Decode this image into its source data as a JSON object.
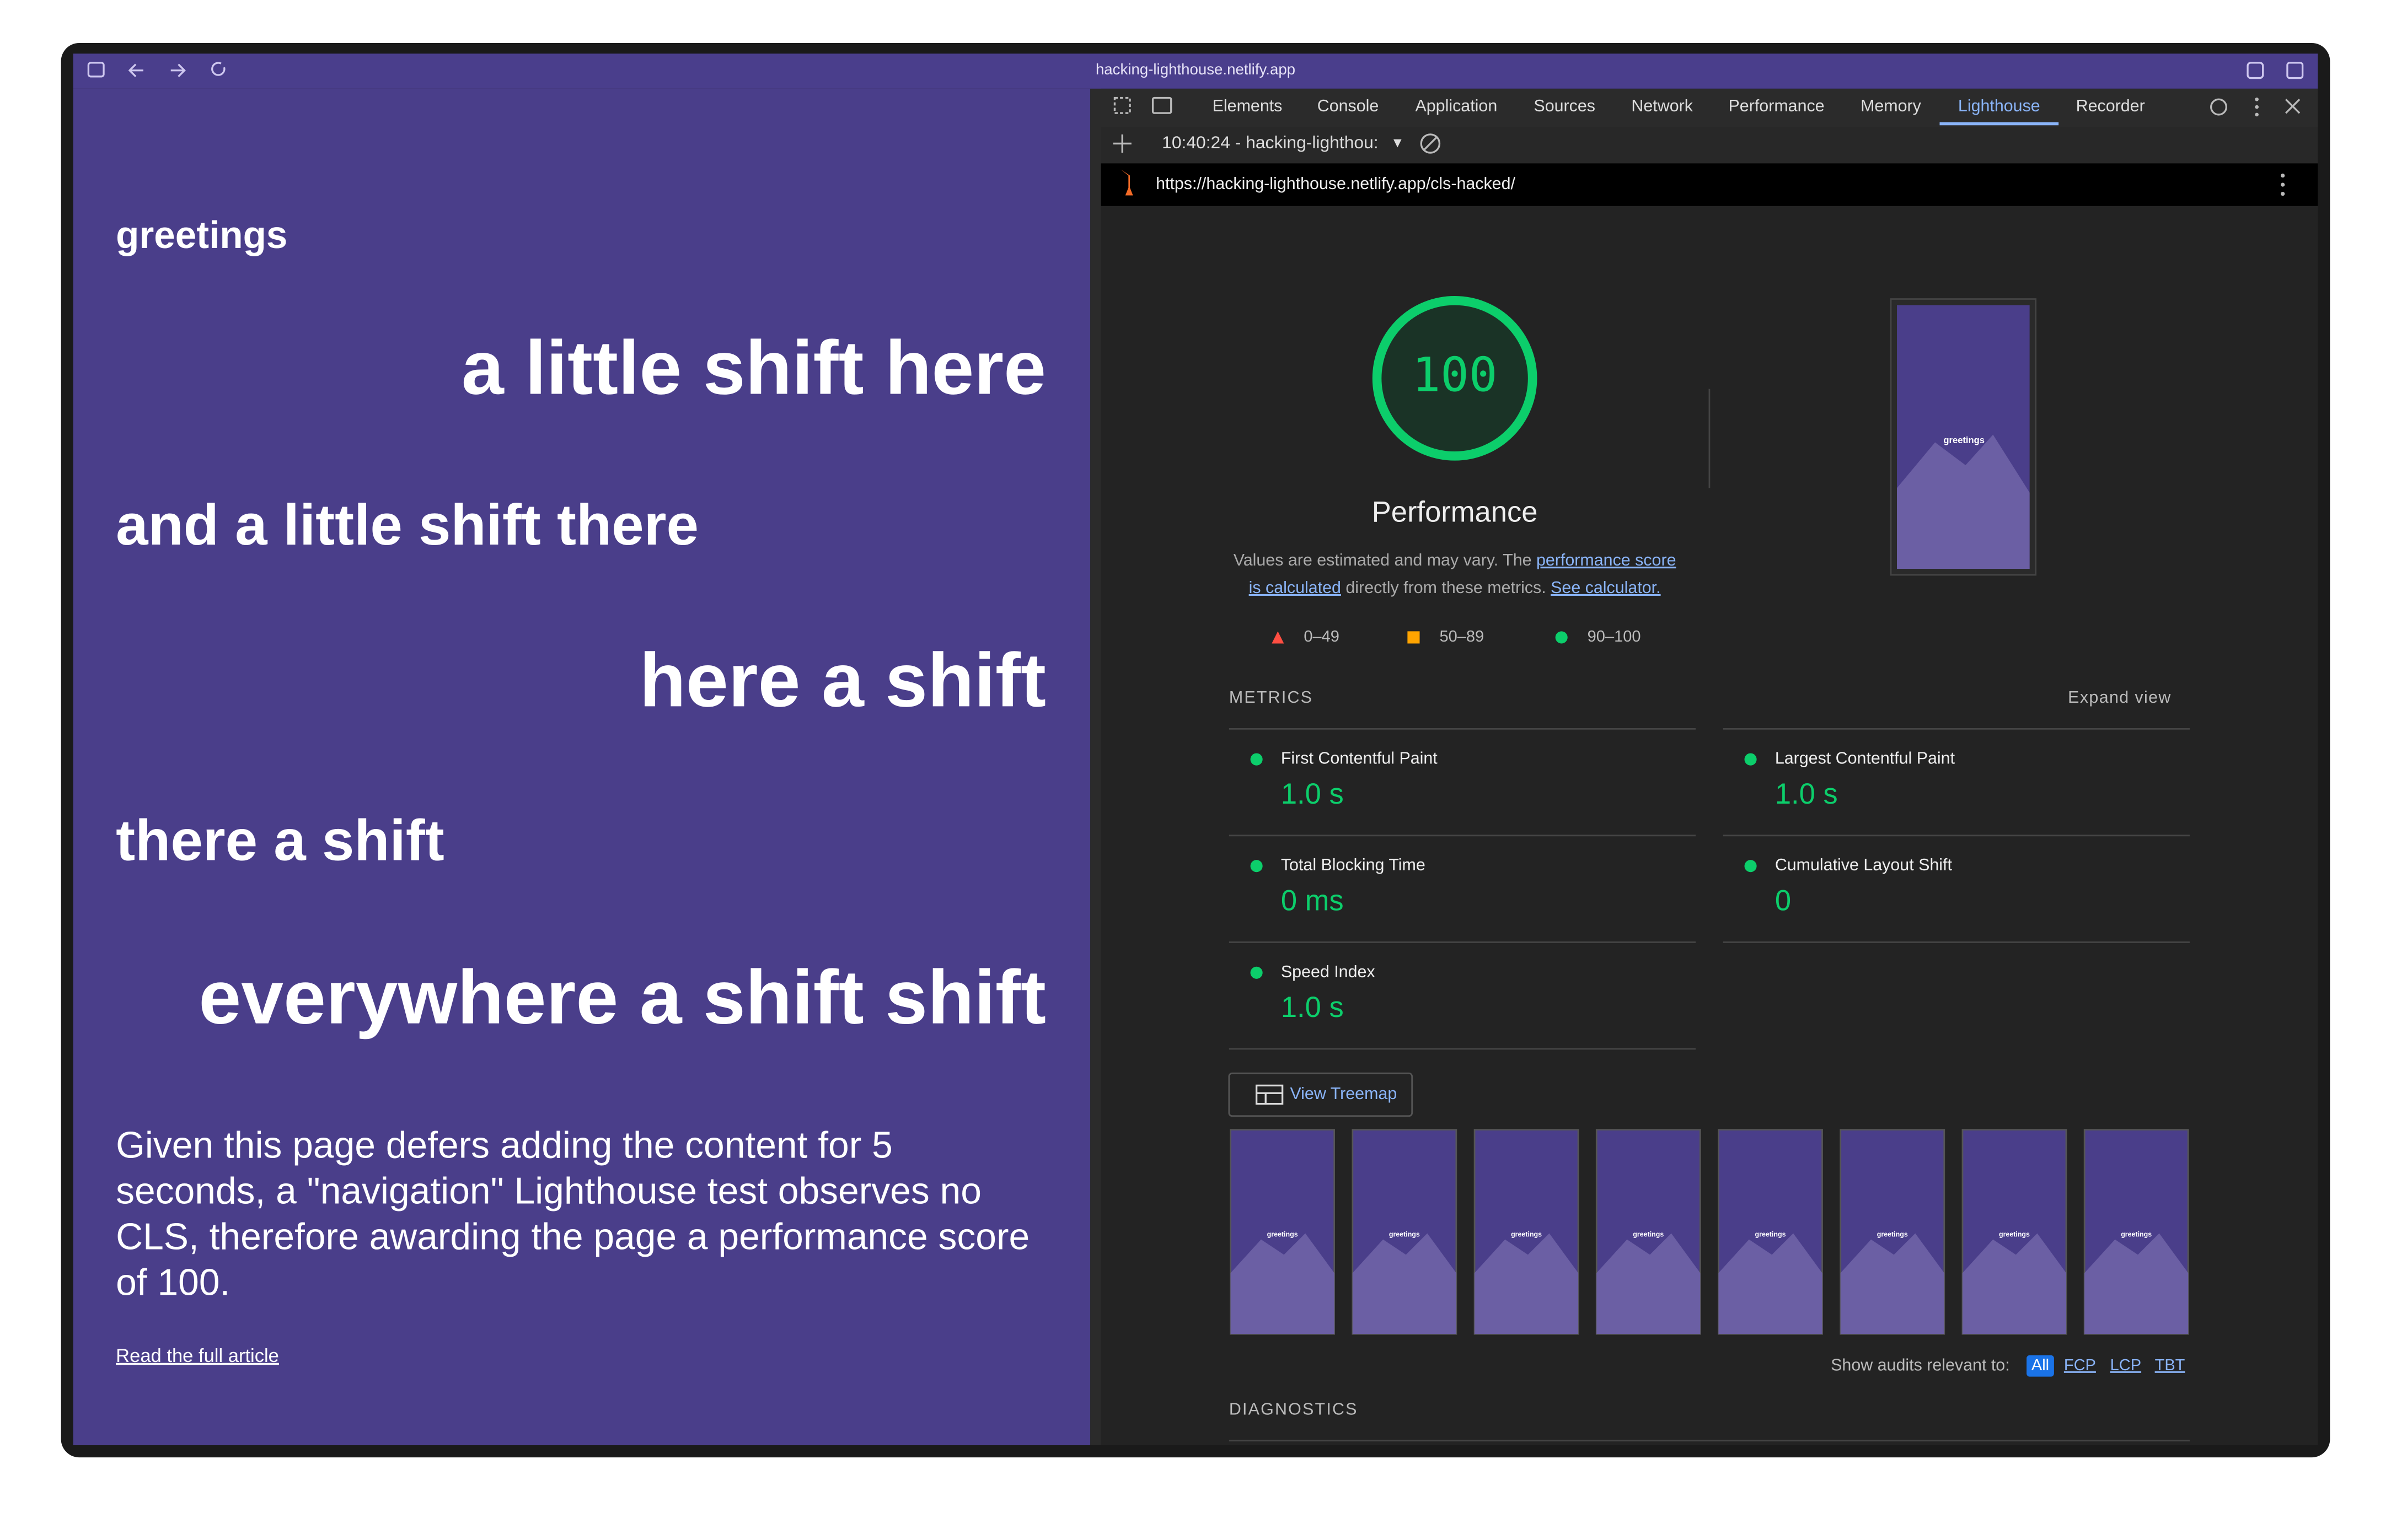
{
  "browser": {
    "url": "hacking-lighthouse.netlify.app"
  },
  "page": {
    "greeting": "greetings",
    "lines": [
      "a little shift here",
      "and a little shift there",
      "here a shift",
      "there a shift",
      "everywhere a shift shift"
    ],
    "paragraph": [
      "Given this page defers adding the content for 5",
      "seconds, a \"navigation\" Lighthouse test observes no",
      "CLS, therefore awarding the page a performance score",
      "of 100."
    ],
    "link": "Read the full article"
  },
  "devtools": {
    "tabs": [
      "Elements",
      "Console",
      "Application",
      "Sources",
      "Network",
      "Performance",
      "Memory",
      "Lighthouse",
      "Recorder"
    ],
    "active_tab": "Lighthouse",
    "report_selector": "10:40:24 - hacking-lighthou:",
    "report_url": "https://hacking-lighthouse.netlify.app/cls-hacked/"
  },
  "lighthouse": {
    "score": 100,
    "category": "Performance",
    "description": [
      [
        {
          "text": "Values are estimated and may vary. The "
        },
        {
          "text": "performance score",
          "link": true
        }
      ],
      [
        {
          "text": "is calculated",
          "link": true
        },
        {
          "text": " directly from these metrics. "
        },
        {
          "text": "See calculator.",
          "link": true
        }
      ]
    ],
    "legend": [
      "0–49",
      "50–89",
      "90–100"
    ],
    "metrics_title": "METRICS",
    "expand": "Expand view",
    "metrics": [
      {
        "name": "First Contentful Paint",
        "value": "1.0 s"
      },
      {
        "name": "Largest Contentful Paint",
        "value": "1.0 s"
      },
      {
        "name": "Total Blocking Time",
        "value": "0 ms"
      },
      {
        "name": "Cumulative Layout Shift",
        "value": "0"
      },
      {
        "name": "Speed Index",
        "value": "1.0 s"
      }
    ],
    "treemap": "View Treemap",
    "screenshot_label": "greetings",
    "filmstrip": [
      "greetings",
      "greetings",
      "greetings",
      "greetings",
      "greetings",
      "greetings",
      "greetings",
      "greetings"
    ],
    "audits_filter": {
      "label": "Show audits relevant to:",
      "options": [
        "All",
        "FCP",
        "LCP",
        "TBT"
      ]
    },
    "diagnostics": "DIAGNOSTICS"
  }
}
